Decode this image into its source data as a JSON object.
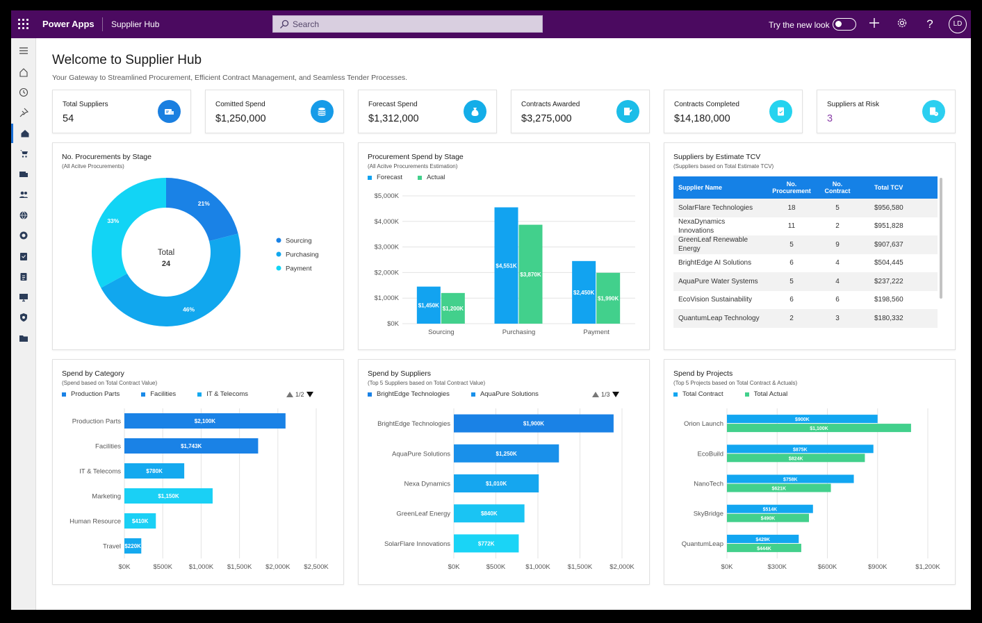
{
  "topbar": {
    "app_name": "Power Apps",
    "app_title": "Supplier Hub",
    "search_placeholder": "Search",
    "try_new_look": "Try the new look",
    "avatar": "LD"
  },
  "header": {
    "title": "Welcome to Supplier Hub",
    "subtitle": "Your Gateway to Streamlined Procurement, Efficient Contract Management, and Seamless Tender Processes."
  },
  "kpis": [
    {
      "label": "Total Suppliers",
      "value": "54",
      "icon": "supplier-card-icon",
      "color": "#1a7fe0"
    },
    {
      "label": "Comitted Spend",
      "value": "$1,250,000",
      "icon": "coins-icon",
      "color": "#169be8"
    },
    {
      "label": "Forecast Spend",
      "value": "$1,312,000",
      "icon": "money-bag-icon",
      "color": "#14ade8"
    },
    {
      "label": "Contracts Awarded",
      "value": "$3,275,000",
      "icon": "contract-sign-icon",
      "color": "#1cbde8"
    },
    {
      "label": "Contracts Completed",
      "value": "$14,180,000",
      "icon": "document-check-icon",
      "color": "#25d3ef"
    },
    {
      "label": "Suppliers at Risk",
      "value": "3",
      "icon": "warning-document-icon",
      "color": "#2ccff0"
    }
  ],
  "procurements_by_stage": {
    "title": "No. Procurements by Stage",
    "subtitle": "(All Acitve Procurements)",
    "center_label": "Total",
    "center_value": "24"
  },
  "procurement_spend": {
    "title": "Procurement Spend by Stage",
    "subtitle": "(All Acitve Procurements Estimation)"
  },
  "suppliers_tcv": {
    "title": "Suppliers by Estimate TCV",
    "subtitle": "(Suppliers based on Total Estimate TCV)",
    "columns": [
      "Supplier Name",
      "No. Procurement",
      "No. Contract",
      "Total TCV"
    ],
    "rows": [
      [
        "SolarFlare Technologies",
        "18",
        "5",
        "$956,580"
      ],
      [
        "NexaDynamics Innovations",
        "11",
        "2",
        "$951,828"
      ],
      [
        "GreenLeaf Renewable Energy",
        "5",
        "9",
        "$907,637"
      ],
      [
        "BrightEdge AI Solutions",
        "6",
        "4",
        "$504,445"
      ],
      [
        "AquaPure Water Systems",
        "5",
        "4",
        "$237,222"
      ],
      [
        "EcoVision Sustainability",
        "6",
        "6",
        "$198,560"
      ],
      [
        "QuantumLeap Technology",
        "2",
        "3",
        "$180,332"
      ]
    ]
  },
  "spend_by_category": {
    "title": "Spend by Category",
    "subtitle": "(Spend based on Total Contract Value)",
    "pager": "1/2"
  },
  "spend_by_suppliers": {
    "title": "Spend by Suppliers",
    "subtitle": "(Top 5 Suppliers based on Total Contract Value)",
    "pager": "1/3"
  },
  "spend_by_projects": {
    "title": "Spend by Projects",
    "subtitle": "(Top 5 Projects based on Total Contract & Actuals)"
  },
  "chart_data": [
    {
      "id": "donut",
      "type": "pie",
      "title": "No. Procurements by Stage",
      "labels": [
        "Sourcing",
        "Purchasing",
        "Payment"
      ],
      "values": [
        21,
        46,
        33
      ],
      "value_labels": [
        "21%",
        "46%",
        "33%"
      ],
      "colors": [
        "#1a82e6",
        "#11a7ee",
        "#12d4f5"
      ]
    },
    {
      "id": "stage",
      "type": "bar",
      "title": "Procurement Spend by Stage",
      "categories": [
        "Sourcing",
        "Purchasing",
        "Payment"
      ],
      "series": [
        {
          "name": "Forecast",
          "values": [
            1450,
            4551,
            2450
          ],
          "labels": [
            "$1,450K",
            "$4,551K",
            "$2,450K"
          ],
          "color": "#12a3f0"
        },
        {
          "name": "Actual",
          "values": [
            1200,
            3870,
            1990
          ],
          "labels": [
            "$1,200K",
            "$3,870K",
            "$1,990K"
          ],
          "color": "#42d08c"
        }
      ],
      "yticks": [
        "$0K",
        "$1,000K",
        "$2,000K",
        "$3,000K",
        "$4,000K",
        "$5,000K"
      ],
      "ylim": [
        0,
        5000
      ]
    },
    {
      "id": "category",
      "type": "bar",
      "orientation": "horizontal",
      "title": "Spend by Category",
      "categories": [
        "Production Parts",
        "Facilities",
        "IT & Telecoms",
        "Marketing",
        "Human Resource",
        "Travel"
      ],
      "values": [
        2100,
        1743,
        780,
        1150,
        410,
        220
      ],
      "labels": [
        "$2,100K",
        "$1,743K",
        "$780K",
        "$1,150K",
        "$410K",
        "$220K"
      ],
      "colors": [
        "#1a82e6",
        "#1a82e6",
        "#14a9ef",
        "#1ad0f5",
        "#1ad0f5",
        "#14a9ef"
      ],
      "legend": [
        {
          "name": "Production Parts",
          "color": "#1a82e6"
        },
        {
          "name": "Facilities",
          "color": "#1a8ae8"
        },
        {
          "name": "IT & Telecoms",
          "color": "#14a9ef"
        }
      ],
      "xticks": [
        "$0K",
        "$500K",
        "$1,000K",
        "$1,500K",
        "$2,000K",
        "$2,500K"
      ],
      "xlim": [
        0,
        2500
      ]
    },
    {
      "id": "suppliers",
      "type": "bar",
      "orientation": "horizontal",
      "title": "Spend by Suppliers",
      "categories": [
        "BrightEdge Technologies",
        "AquaPure Solutions",
        "Nexa Dynamics",
        "GreenLeaf Energy",
        "SolarFlare Innovations"
      ],
      "values": [
        1900,
        1250,
        1010,
        840,
        772
      ],
      "labels": [
        "$1,900K",
        "$1,250K",
        "$1,010K",
        "$840K",
        "$772K"
      ],
      "colors": [
        "#1a82e6",
        "#1990ea",
        "#15a6ef",
        "#1ac4f3",
        "#1ad4f6"
      ],
      "legend": [
        {
          "name": "BrightEdge Technologies",
          "color": "#1a82e6"
        },
        {
          "name": "AquaPure Solutions",
          "color": "#1990ea"
        }
      ],
      "xticks": [
        "$0K",
        "$500K",
        "$1,000K",
        "$1,500K",
        "$2,000K"
      ],
      "xlim": [
        0,
        2000
      ]
    },
    {
      "id": "projects",
      "type": "bar",
      "orientation": "horizontal",
      "title": "Spend by Projects",
      "categories": [
        "Orion Launch",
        "EcoBuild",
        "NanoTech",
        "SkyBridge",
        "QuantumLeap"
      ],
      "series": [
        {
          "name": "Total Contract",
          "values": [
            900,
            875,
            758,
            514,
            429
          ],
          "labels": [
            "$900K",
            "$875K",
            "$758K",
            "$514K",
            "$429K"
          ],
          "color": "#12a6f1"
        },
        {
          "name": "Total Actual",
          "values": [
            1100,
            824,
            621,
            490,
            444
          ],
          "labels": [
            "$1,100K",
            "$824K",
            "$621K",
            "$490K",
            "$444K"
          ],
          "color": "#42d08c"
        }
      ],
      "xticks": [
        "$0K",
        "$300K",
        "$600K",
        "$900K",
        "$1,200K"
      ],
      "xlim": [
        0,
        1200
      ]
    }
  ]
}
